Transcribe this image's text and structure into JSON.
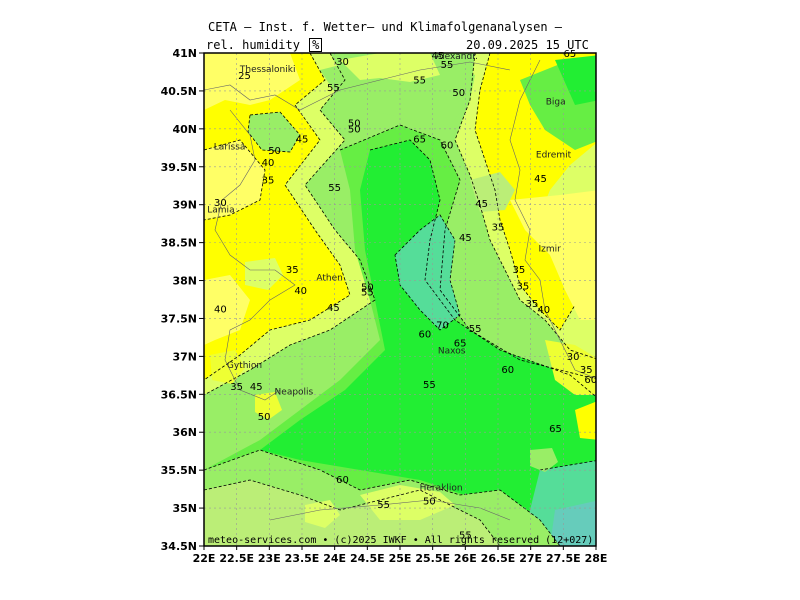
{
  "title": "CETA – Inst. f. Wetter– und Klimafolgenanalysen –",
  "variable": "rel. humidity",
  "unit": "%",
  "timestamp": "20.09.2025 15 UTC",
  "footer": "meteo-services.com • (c)2025 IWKF • All rights reserved (12+027)",
  "lat_labels": [
    "41N",
    "40.5N",
    "40N",
    "39.5N",
    "39N",
    "38.5N",
    "38N",
    "37.5N",
    "37N",
    "36.5N",
    "36N",
    "35.5N",
    "35N",
    "34.5N"
  ],
  "lon_labels": [
    "22E",
    "22.5E",
    "23E",
    "23.5E",
    "24E",
    "24.5E",
    "25E",
    "25.5E",
    "26E",
    "26.5E",
    "27E",
    "27.5E",
    "28E"
  ],
  "cities": [
    {
      "name": "Thessaloniki",
      "lon": 22.55,
      "lat": 40.75
    },
    {
      "name": "Alexandr.",
      "lon": 25.55,
      "lat": 40.92
    },
    {
      "name": "Biga",
      "lon": 27.23,
      "lat": 40.32
    },
    {
      "name": "Larissa",
      "lon": 22.15,
      "lat": 39.73
    },
    {
      "name": "Edremit",
      "lon": 27.08,
      "lat": 39.62
    },
    {
      "name": "Lamia",
      "lon": 22.05,
      "lat": 38.9
    },
    {
      "name": "Izmir",
      "lon": 27.12,
      "lat": 38.38
    },
    {
      "name": "Athen",
      "lon": 23.72,
      "lat": 38.0
    },
    {
      "name": "Naxos",
      "lon": 25.58,
      "lat": 37.04
    },
    {
      "name": "Gythion",
      "lon": 22.35,
      "lat": 36.85
    },
    {
      "name": "Neapolis",
      "lon": 23.08,
      "lat": 36.5
    },
    {
      "name": "Heraklion",
      "lon": 25.3,
      "lat": 35.23
    }
  ],
  "contour_labels": [
    {
      "text": "25",
      "lon": 22.62,
      "lat": 40.66
    },
    {
      "text": "30",
      "lon": 24.12,
      "lat": 40.84
    },
    {
      "text": "55",
      "lon": 23.98,
      "lat": 40.5
    },
    {
      "text": "45",
      "lon": 25.58,
      "lat": 40.92
    },
    {
      "text": "55",
      "lon": 25.72,
      "lat": 40.8
    },
    {
      "text": "55",
      "lon": 25.3,
      "lat": 40.6
    },
    {
      "text": "65",
      "lon": 27.6,
      "lat": 40.95
    },
    {
      "text": "50",
      "lon": 25.9,
      "lat": 40.43
    },
    {
      "text": "50",
      "lon": 24.3,
      "lat": 40.03
    },
    {
      "text": "50",
      "lon": 24.3,
      "lat": 39.95
    },
    {
      "text": "45",
      "lon": 23.5,
      "lat": 39.82
    },
    {
      "text": "65",
      "lon": 25.3,
      "lat": 39.82
    },
    {
      "text": "60",
      "lon": 25.72,
      "lat": 39.74
    },
    {
      "text": "50",
      "lon": 23.08,
      "lat": 39.67
    },
    {
      "text": "40",
      "lon": 22.98,
      "lat": 39.51
    },
    {
      "text": "35",
      "lon": 22.98,
      "lat": 39.28
    },
    {
      "text": "55",
      "lon": 24.0,
      "lat": 39.18
    },
    {
      "text": "45",
      "lon": 27.15,
      "lat": 39.3
    },
    {
      "text": "30",
      "lon": 22.25,
      "lat": 38.98
    },
    {
      "text": "45",
      "lon": 26.25,
      "lat": 38.97
    },
    {
      "text": "35",
      "lon": 26.5,
      "lat": 38.66
    },
    {
      "text": "45",
      "lon": 26.0,
      "lat": 38.52
    },
    {
      "text": "35",
      "lon": 23.35,
      "lat": 38.1
    },
    {
      "text": "35",
      "lon": 26.82,
      "lat": 38.1
    },
    {
      "text": "50",
      "lon": 24.5,
      "lat": 37.87
    },
    {
      "text": "40",
      "lon": 23.48,
      "lat": 37.82
    },
    {
      "text": "55",
      "lon": 24.5,
      "lat": 37.8
    },
    {
      "text": "35",
      "lon": 26.88,
      "lat": 37.88
    },
    {
      "text": "40",
      "lon": 22.25,
      "lat": 37.58
    },
    {
      "text": "45",
      "lon": 23.98,
      "lat": 37.6
    },
    {
      "text": "35",
      "lon": 27.02,
      "lat": 37.65
    },
    {
      "text": "40",
      "lon": 27.2,
      "lat": 37.57
    },
    {
      "text": "70",
      "lon": 25.65,
      "lat": 37.37
    },
    {
      "text": "55",
      "lon": 26.15,
      "lat": 37.32
    },
    {
      "text": "60",
      "lon": 25.38,
      "lat": 37.25
    },
    {
      "text": "65",
      "lon": 25.92,
      "lat": 37.13
    },
    {
      "text": "30",
      "lon": 27.65,
      "lat": 36.95
    },
    {
      "text": "60",
      "lon": 26.65,
      "lat": 36.78
    },
    {
      "text": "35",
      "lon": 27.85,
      "lat": 36.78
    },
    {
      "text": "60",
      "lon": 27.92,
      "lat": 36.65
    },
    {
      "text": "35",
      "lon": 22.5,
      "lat": 36.56
    },
    {
      "text": "45",
      "lon": 22.8,
      "lat": 36.56
    },
    {
      "text": "55",
      "lon": 25.45,
      "lat": 36.58
    },
    {
      "text": "50",
      "lon": 22.92,
      "lat": 36.16
    },
    {
      "text": "65",
      "lon": 27.38,
      "lat": 36.0
    },
    {
      "text": "60",
      "lon": 24.12,
      "lat": 35.33
    },
    {
      "text": "55",
      "lon": 24.75,
      "lat": 35.0
    },
    {
      "text": "50",
      "lon": 25.45,
      "lat": 35.05
    },
    {
      "text": "55",
      "lon": 26.0,
      "lat": 34.6
    }
  ],
  "colors": {
    "c25": "#ffff99",
    "c30": "#ffff66",
    "c35": "#ffff00",
    "c40": "#eeff33",
    "c45": "#ddff66",
    "c50": "#bbee77",
    "c55": "#99ee66",
    "c60": "#66ee44",
    "c65": "#22ee33",
    "c70": "#55dd99",
    "c75": "#66ccbb"
  }
}
